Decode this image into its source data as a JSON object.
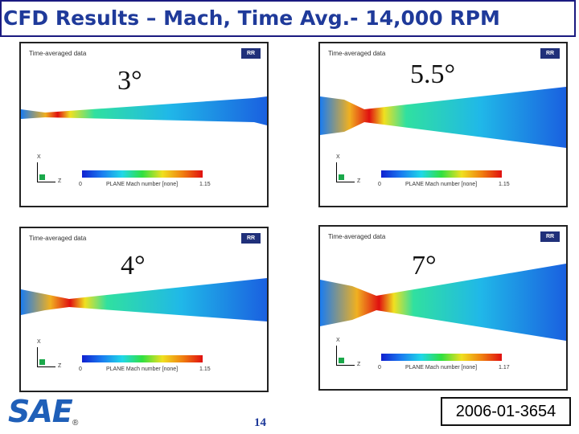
{
  "slide": {
    "title": "CFD Results – Mach, Time Avg.-  14,000 RPM",
    "page_number": "14",
    "paper_id": "2006-01-3654",
    "logo_text": "SAE",
    "registered_mark": "®"
  },
  "panels": [
    {
      "angle": "3°",
      "plot_title": "Time-averaged data",
      "legend_label": "PLANE Mach number [none]",
      "legend_min": "0",
      "legend_max": "1.15",
      "axis_z": "Z",
      "axis_x": "X"
    },
    {
      "angle": "5.5°",
      "plot_title": "Time-averaged data",
      "legend_label": "PLANE Mach number [none]",
      "legend_min": "0",
      "legend_max": "1.15",
      "axis_z": "Z",
      "axis_x": "X"
    },
    {
      "angle": "4°",
      "plot_title": "Time-averaged data",
      "legend_label": "PLANE Mach number [none]",
      "legend_min": "0",
      "legend_max": "1.15",
      "axis_z": "Z",
      "axis_x": "X"
    },
    {
      "angle": "7°",
      "plot_title": "Time-averaged data",
      "legend_label": "PLANE Mach number [none]",
      "legend_min": "0",
      "legend_max": "1.17",
      "axis_z": "Z",
      "axis_x": "X"
    }
  ],
  "colors": {
    "title": "#1f3a9a",
    "sae_blue": "#1f5fb8",
    "flow_high": "#e01010",
    "flow_low": "#1020d0"
  }
}
